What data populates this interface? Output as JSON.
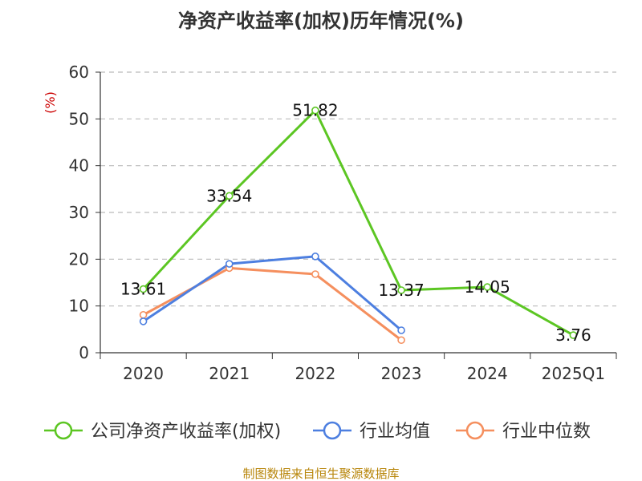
{
  "chart_data": {
    "type": "line",
    "title": "净资产收益率(加权)历年情况(%)",
    "ylabel": "(%)",
    "xlabel": "",
    "ylim": [
      0,
      60
    ],
    "yticks": [
      "0",
      "10",
      "20",
      "30",
      "40",
      "50",
      "60"
    ],
    "categories": [
      "2020",
      "2021",
      "2022",
      "2023",
      "2024",
      "2025Q1"
    ],
    "grid": true,
    "legend_position": "bottom",
    "series": [
      {
        "name": "公司净资产收益率(加权)",
        "color": "#5cc623",
        "values": [
          13.61,
          33.54,
          51.82,
          13.37,
          14.05,
          3.76
        ],
        "labels": [
          "13.61",
          "33.54",
          "51.82",
          "13.37",
          "14.05",
          "3.76"
        ]
      },
      {
        "name": "行业均值",
        "color": "#4d7fe0",
        "values": [
          6.7,
          19.0,
          20.6,
          4.8,
          null,
          null
        ]
      },
      {
        "name": "行业中位数",
        "color": "#f58f5e",
        "values": [
          8.1,
          18.1,
          16.8,
          2.7,
          null,
          null
        ]
      }
    ],
    "source": "制图数据来自恒生聚源数据库"
  }
}
